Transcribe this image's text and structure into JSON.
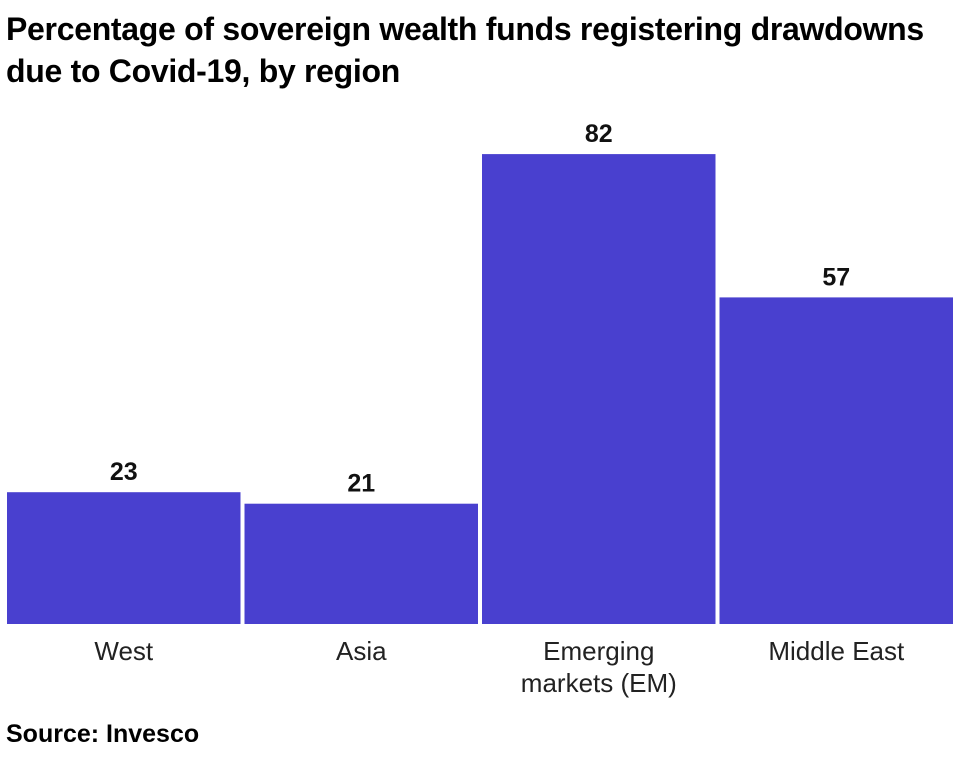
{
  "title": "Percentage of sovereign wealth funds registering drawdowns due to Covid-19, by region",
  "source": "Source: Invesco",
  "chart_data": {
    "type": "bar",
    "title": "Percentage of sovereign wealth funds registering drawdowns due to Covid-19, by region",
    "categories": [
      "West",
      "Asia",
      "Emerging markets (EM)",
      "Middle East"
    ],
    "category_lines": [
      [
        "West"
      ],
      [
        "Asia"
      ],
      [
        "Emerging",
        "markets (EM)"
      ],
      [
        "Middle East"
      ]
    ],
    "values": [
      23,
      21,
      82,
      57
    ],
    "ylim": [
      0,
      100
    ],
    "bar_color": "#4940cf",
    "grid": false,
    "xlabel": "",
    "ylabel": ""
  }
}
